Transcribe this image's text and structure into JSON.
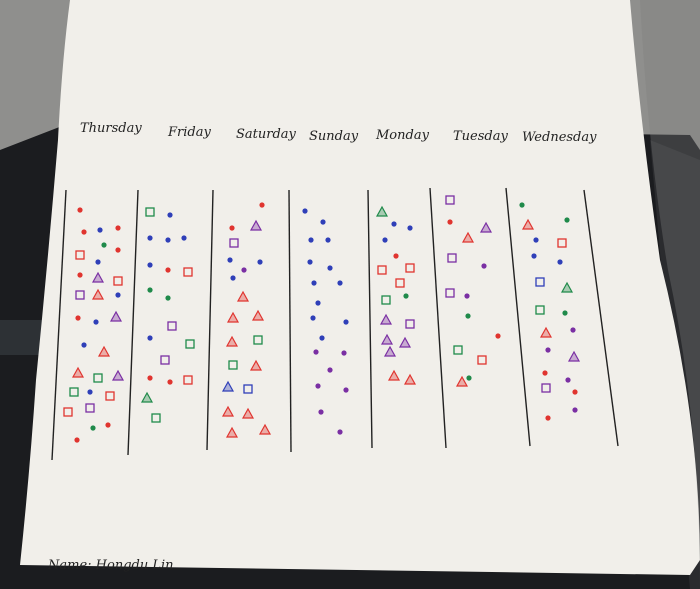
{
  "photo": {
    "days": [
      "Thursday",
      "Friday",
      "Saturday",
      "Sunday",
      "Monday",
      "Tuesday",
      "Wednesday"
    ],
    "name_label": "Name: Hongdu Lin",
    "marker_colors": {
      "red": "#e0342f",
      "blue": "#2f3fb8",
      "green": "#1f8a4a",
      "purple": "#7a2fa3"
    },
    "marker_symbols": [
      "dot",
      "square",
      "triangle"
    ]
  }
}
